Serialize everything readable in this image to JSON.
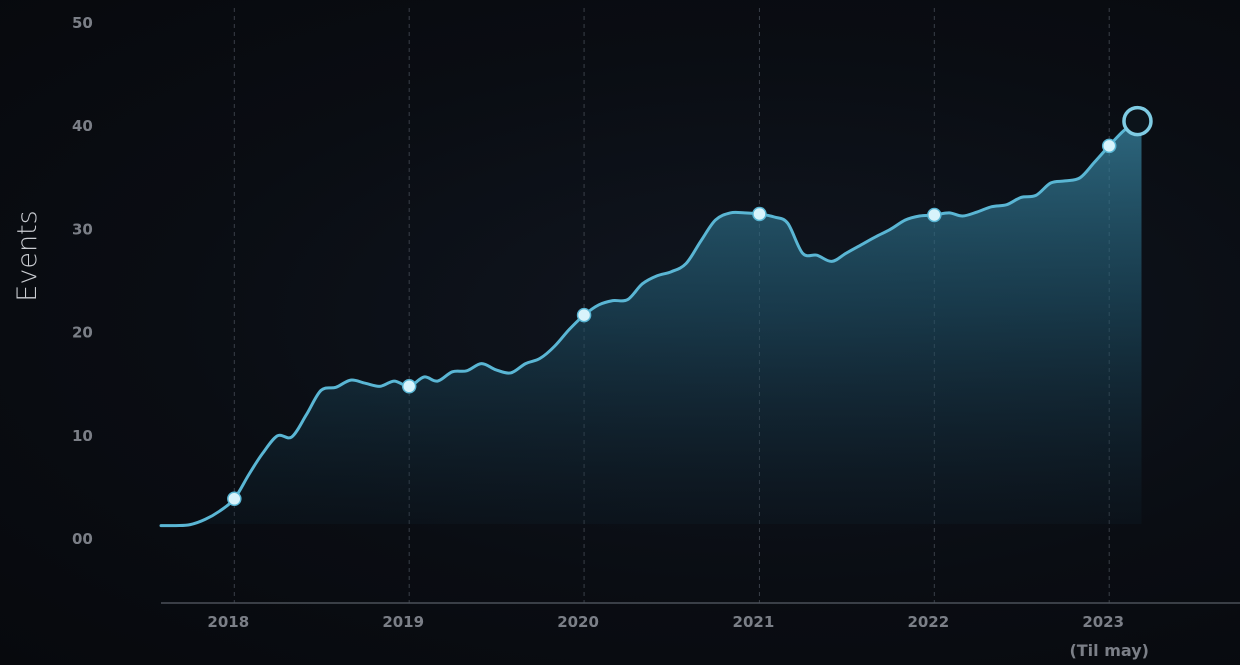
{
  "chart_data": {
    "type": "area",
    "title": "",
    "xlabel": "",
    "ylabel": "Events",
    "y_ticks": [
      "00",
      "10",
      "20",
      "30",
      "40",
      "50"
    ],
    "ylim": [
      0,
      50
    ],
    "x_ticks": [
      {
        "label": "2018",
        "value": "2018-01-01"
      },
      {
        "label": "2019",
        "value": "2019-01-01"
      },
      {
        "label": "2020",
        "value": "2020-01-01"
      },
      {
        "label": "2021",
        "value": "2021-01-01"
      },
      {
        "label": "2022",
        "value": "2022-01-01"
      },
      {
        "label": "2023",
        "sublabel": "(Til may)",
        "value": "2023-01-01"
      }
    ],
    "xlim": [
      "2017-08-01",
      "2023-10-01"
    ],
    "grid": {
      "vertical_dashed": true,
      "horizontal": false
    },
    "colors": {
      "line": "#5ab6d4",
      "fill": "#2e6f88",
      "marker": "#d8f3fb"
    },
    "series": [
      {
        "x": [
          "2017-08-01",
          "2017-09-01",
          "2017-10-01",
          "2017-11-01",
          "2017-12-01",
          "2018-01-01",
          "2018-02-01",
          "2018-03-01",
          "2018-04-01",
          "2018-05-01",
          "2018-06-01",
          "2018-07-01",
          "2018-08-01",
          "2018-09-01",
          "2018-10-01",
          "2018-11-01",
          "2018-12-01",
          "2019-01-01",
          "2019-02-01",
          "2019-03-01",
          "2019-04-01",
          "2019-05-01",
          "2019-06-01",
          "2019-07-01",
          "2019-08-01",
          "2019-09-01",
          "2019-10-01",
          "2019-11-01",
          "2019-12-01",
          "2020-01-01",
          "2020-02-01",
          "2020-03-01",
          "2020-04-01",
          "2020-05-01",
          "2020-06-01",
          "2020-07-01",
          "2020-08-01",
          "2020-09-01",
          "2020-10-01",
          "2020-11-01",
          "2020-12-01",
          "2021-01-01",
          "2021-02-01",
          "2021-03-01",
          "2021-04-01",
          "2021-05-01",
          "2021-06-01",
          "2021-07-01",
          "2021-08-01",
          "2021-09-01",
          "2021-10-01",
          "2021-11-01",
          "2021-12-01",
          "2022-01-01",
          "2022-02-01",
          "2022-03-01",
          "2022-04-01",
          "2022-05-01",
          "2022-06-01",
          "2022-07-01",
          "2022-08-01",
          "2022-09-01",
          "2022-10-01",
          "2022-11-01",
          "2022-12-01",
          "2023-01-01",
          "2023-02-01",
          "2023-03-01"
        ],
        "y": [
          1.2,
          1.2,
          1.3,
          1.8,
          2.6,
          3.8,
          6.2,
          8.2,
          9.9,
          9.8,
          12.0,
          14.3,
          14.6,
          15.3,
          15.0,
          14.7,
          15.2,
          14.7,
          15.6,
          15.2,
          16.1,
          16.2,
          16.9,
          16.3,
          16.0,
          16.9,
          17.4,
          18.6,
          20.2,
          21.6,
          22.6,
          23.0,
          23.1,
          24.6,
          25.4,
          25.8,
          26.6,
          28.8,
          30.8,
          31.5,
          31.5,
          31.4,
          31.1,
          30.5,
          27.6,
          27.4,
          26.8,
          27.6,
          28.4,
          29.2,
          29.9,
          30.8,
          31.2,
          31.3,
          31.5,
          31.2,
          31.6,
          32.1,
          32.3,
          33.0,
          33.2,
          34.4,
          34.6,
          34.9,
          36.4,
          38.0,
          39.5,
          40.4
        ]
      }
    ],
    "markers": [
      "2018-01-01",
      "2019-01-01",
      "2020-01-01",
      "2021-01-01",
      "2022-01-01",
      "2023-01-01"
    ],
    "end_marker": "2023-03-01"
  }
}
